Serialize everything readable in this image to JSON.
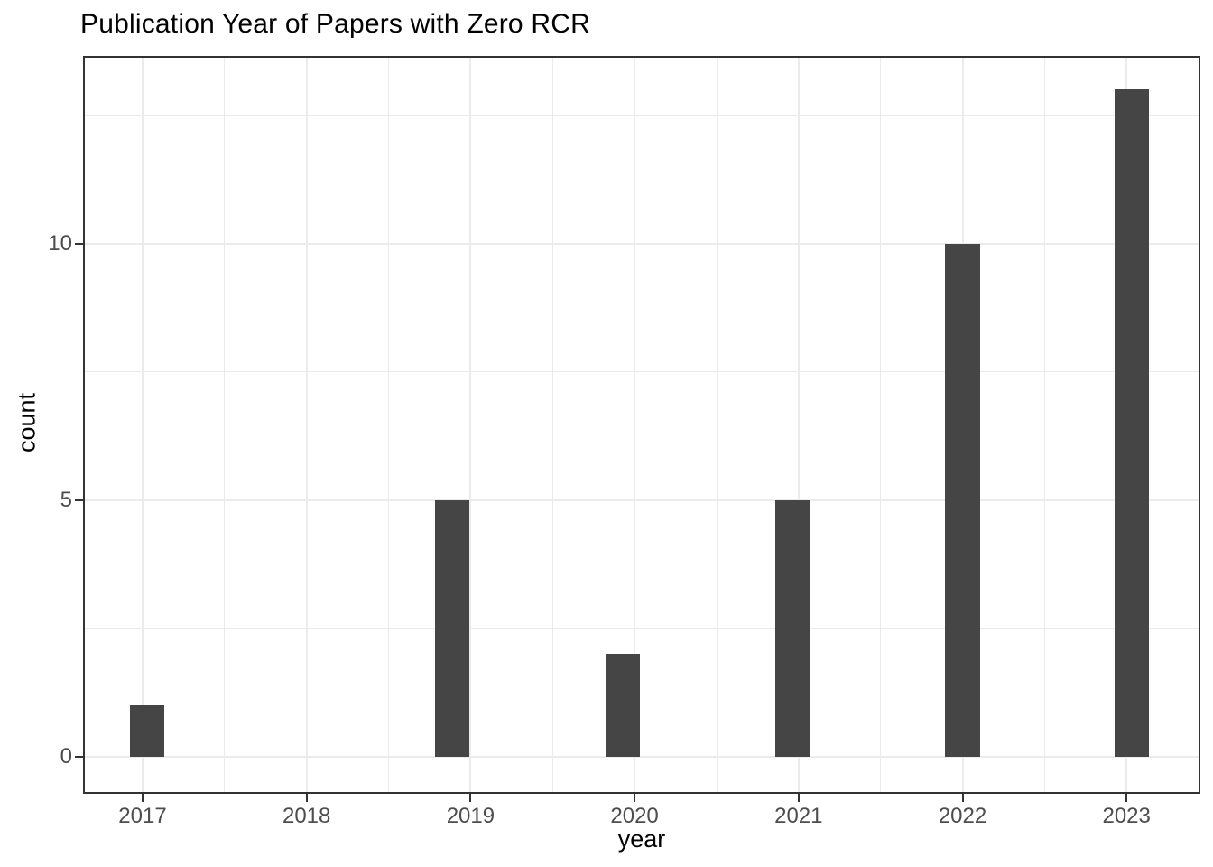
{
  "chart_data": {
    "type": "bar",
    "title": "Publication Year of Papers with Zero RCR",
    "xlabel": "year",
    "ylabel": "count",
    "categories": [
      "2017",
      "2018",
      "2019",
      "2020",
      "2021",
      "2022",
      "2023"
    ],
    "values": [
      1,
      0,
      5,
      2,
      5,
      10,
      13
    ],
    "bars": [
      {
        "x": 2017.03,
        "count": 1
      },
      {
        "x": 2018.89,
        "count": 5
      },
      {
        "x": 2019.93,
        "count": 2
      },
      {
        "x": 2020.96,
        "count": 5
      },
      {
        "x": 2022.0,
        "count": 10
      },
      {
        "x": 2023.03,
        "count": 13
      }
    ],
    "bar_width_units": 0.21,
    "x_ticks": [
      {
        "value": 2017,
        "label": "2017"
      },
      {
        "value": 2018,
        "label": "2018"
      },
      {
        "value": 2019,
        "label": "2019"
      },
      {
        "value": 2020,
        "label": "2020"
      },
      {
        "value": 2021,
        "label": "2021"
      },
      {
        "value": 2022,
        "label": "2022"
      },
      {
        "value": 2023,
        "label": "2023"
      }
    ],
    "y_ticks": [
      {
        "value": 0,
        "label": "0"
      },
      {
        "value": 5,
        "label": "5"
      },
      {
        "value": 10,
        "label": "10"
      }
    ],
    "x_minor_ticks": [
      2017.5,
      2018.5,
      2019.5,
      2020.5,
      2021.5,
      2022.5
    ],
    "y_minor_ticks": [
      2.5,
      7.5,
      12.5
    ],
    "xlim": [
      2016.637,
      2023.45
    ],
    "ylim": [
      -0.72,
      13.65
    ],
    "grid": true,
    "legend": false,
    "colors": {
      "bar": "#454545",
      "grid": "#ebebeb",
      "panel_border": "#333333",
      "tick": "#333333",
      "tick_label": "#4d4d4d",
      "axis_title": "#000000",
      "title": "#000000",
      "background": "#ffffff"
    }
  }
}
